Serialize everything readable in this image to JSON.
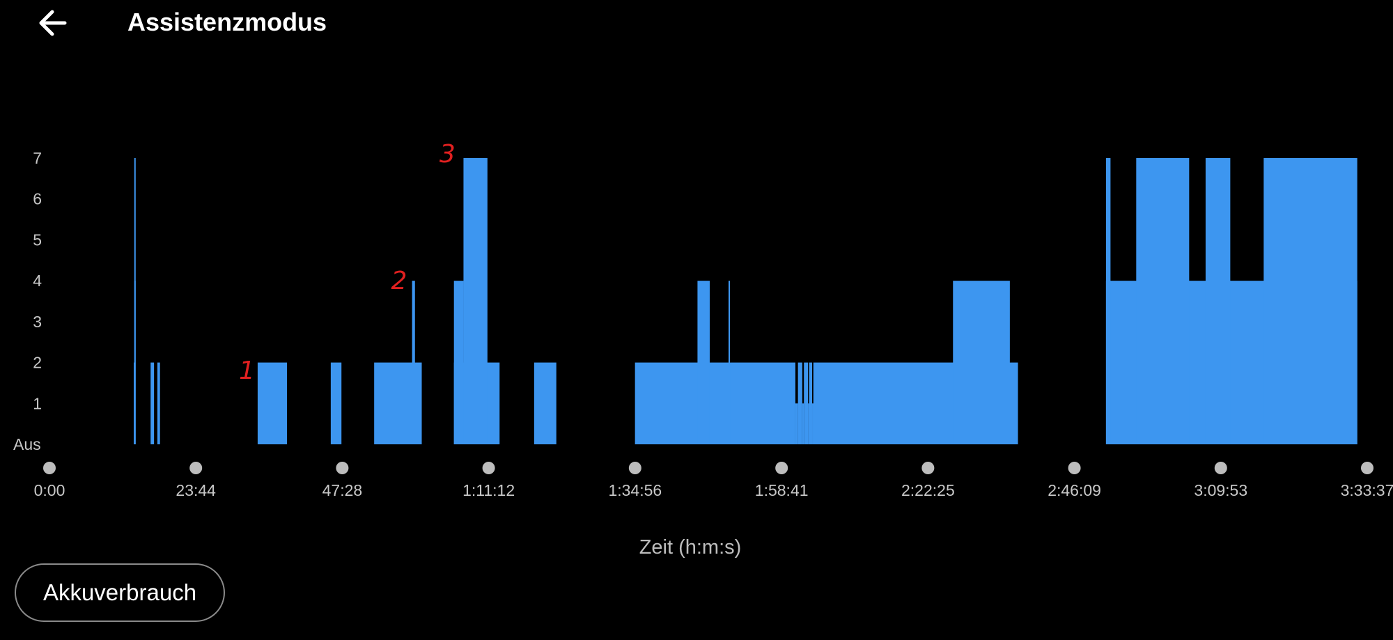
{
  "header": {
    "title": "Assistenzmodus",
    "back_icon": "arrow-left-icon"
  },
  "buttons": {
    "akku_label": "Akkuverbrauch"
  },
  "colors": {
    "bar": "#3d96f0",
    "background": "#000000",
    "annotation": "#e02020"
  },
  "chart_data": {
    "type": "bar",
    "title": "",
    "xlabel": "Zeit (h:m:s)",
    "ylabel": "",
    "x_unit": "seconds",
    "xlim": [
      0,
      12817
    ],
    "ylim": [
      0,
      7
    ],
    "y_ticks": [
      "Aus",
      "1",
      "2",
      "3",
      "4",
      "5",
      "6",
      "7"
    ],
    "x_ticks": [
      {
        "label": "0:00",
        "value": 0
      },
      {
        "label": "23:44",
        "value": 1424
      },
      {
        "label": "47:28",
        "value": 2848
      },
      {
        "label": "1:11:12",
        "value": 4272
      },
      {
        "label": "1:34:56",
        "value": 5696
      },
      {
        "label": "1:58:41",
        "value": 7121
      },
      {
        "label": "2:22:25",
        "value": 8545
      },
      {
        "label": "2:46:09",
        "value": 9969
      },
      {
        "label": "3:09:53",
        "value": 11393
      },
      {
        "label": "3:33:37",
        "value": 12817
      }
    ],
    "segments": [
      {
        "start": 820,
        "end": 834,
        "value": 2
      },
      {
        "start": 825,
        "end": 830,
        "value": 4
      },
      {
        "start": 825,
        "end": 828,
        "value": 7
      },
      {
        "start": 984,
        "end": 1017,
        "value": 2
      },
      {
        "start": 1050,
        "end": 1075,
        "value": 2
      },
      {
        "start": 2025,
        "end": 2310,
        "value": 2
      },
      {
        "start": 2736,
        "end": 2840,
        "value": 2
      },
      {
        "start": 3158,
        "end": 3621,
        "value": 2
      },
      {
        "start": 3527,
        "end": 3555,
        "value": 4
      },
      {
        "start": 3934,
        "end": 4378,
        "value": 2
      },
      {
        "start": 3934,
        "end": 4027,
        "value": 4
      },
      {
        "start": 4027,
        "end": 4260,
        "value": 7
      },
      {
        "start": 4714,
        "end": 4930,
        "value": 2
      },
      {
        "start": 5695,
        "end": 7255,
        "value": 2
      },
      {
        "start": 6303,
        "end": 6422,
        "value": 4
      },
      {
        "start": 6605,
        "end": 6617,
        "value": 4
      },
      {
        "start": 7255,
        "end": 7280,
        "value": 1
      },
      {
        "start": 7280,
        "end": 7322,
        "value": 2
      },
      {
        "start": 7322,
        "end": 7338,
        "value": 1
      },
      {
        "start": 7338,
        "end": 7378,
        "value": 2
      },
      {
        "start": 7378,
        "end": 7388,
        "value": 1
      },
      {
        "start": 7388,
        "end": 7418,
        "value": 2
      },
      {
        "start": 7418,
        "end": 7430,
        "value": 1
      },
      {
        "start": 7430,
        "end": 9420,
        "value": 2
      },
      {
        "start": 8788,
        "end": 9341,
        "value": 4
      },
      {
        "start": 10276,
        "end": 12720,
        "value": 4
      },
      {
        "start": 10276,
        "end": 10320,
        "value": 7
      },
      {
        "start": 10570,
        "end": 11085,
        "value": 7
      },
      {
        "start": 11245,
        "end": 11485,
        "value": 7
      },
      {
        "start": 11810,
        "end": 12720,
        "value": 7
      }
    ],
    "annotations": [
      {
        "text": "1",
        "x": 1920,
        "y": 1.6
      },
      {
        "text": "2",
        "x": 3400,
        "y": 3.8
      },
      {
        "text": "3",
        "x": 3870,
        "y": 6.9
      }
    ]
  }
}
